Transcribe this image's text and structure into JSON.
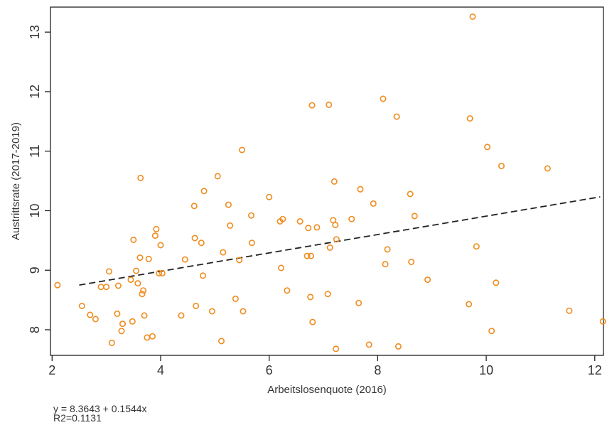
{
  "chart_data": {
    "type": "scatter",
    "title": "",
    "xlabel": "Arbeitslosenquote (2016)",
    "ylabel": "Austrittsrate (2017-2019)",
    "xlim": [
      1.97,
      12.16
    ],
    "ylim": [
      7.57,
      13.42
    ],
    "xticks": [
      2,
      4,
      6,
      8,
      10,
      12
    ],
    "yticks": [
      8,
      9,
      10,
      11,
      12,
      13
    ],
    "grid": false,
    "colors": {
      "points": "#f08c1e",
      "fit_line": "#222222",
      "axis": "#222222"
    },
    "series": [
      {
        "marker": "hollow-circle",
        "x": [
          2.1,
          2.55,
          2.7,
          2.8,
          2.9,
          3.0,
          3.05,
          3.1,
          3.2,
          3.22,
          3.28,
          3.3,
          3.45,
          3.48,
          3.5,
          3.55,
          3.58,
          3.62,
          3.63,
          3.66,
          3.68,
          3.7,
          3.75,
          3.78,
          3.85,
          3.9,
          3.92,
          3.97,
          4.0,
          4.03,
          4.38,
          4.45,
          4.62,
          4.63,
          4.65,
          4.75,
          4.78,
          4.8,
          4.95,
          5.05,
          5.12,
          5.15,
          5.25,
          5.28,
          5.38,
          5.45,
          5.5,
          5.52,
          5.67,
          5.68,
          6.0,
          6.2,
          6.22,
          6.25,
          6.33,
          6.57,
          6.7,
          6.72,
          6.76,
          6.77,
          6.79,
          6.8,
          6.88,
          7.08,
          7.1,
          7.12,
          7.18,
          7.2,
          7.22,
          7.24,
          7.23,
          7.52,
          7.65,
          7.68,
          7.84,
          7.92,
          8.1,
          8.14,
          8.18,
          8.35,
          8.38,
          8.6,
          8.62,
          8.68,
          8.92,
          9.68,
          9.7,
          9.75,
          9.82,
          10.02,
          10.1,
          10.18,
          10.28,
          11.13,
          11.53,
          12.15
        ],
        "y": [
          8.75,
          8.4,
          8.25,
          8.18,
          8.72,
          8.72,
          8.98,
          7.78,
          8.27,
          8.74,
          7.98,
          8.1,
          8.84,
          8.14,
          9.51,
          8.99,
          8.78,
          9.21,
          10.55,
          8.6,
          8.66,
          8.24,
          7.87,
          9.19,
          7.89,
          9.58,
          9.69,
          8.95,
          9.42,
          8.95,
          8.24,
          9.18,
          10.08,
          9.54,
          8.4,
          9.46,
          8.91,
          10.33,
          8.31,
          10.58,
          7.81,
          9.3,
          10.1,
          9.75,
          8.52,
          9.17,
          11.02,
          8.31,
          9.92,
          9.46,
          10.23,
          9.82,
          9.04,
          9.86,
          8.66,
          9.82,
          9.24,
          9.71,
          8.55,
          9.24,
          11.77,
          8.13,
          9.72,
          8.6,
          11.78,
          9.38,
          9.84,
          10.49,
          9.76,
          9.52,
          7.68,
          9.86,
          8.45,
          10.36,
          7.75,
          10.12,
          11.88,
          9.1,
          9.35,
          11.58,
          7.72,
          10.28,
          9.14,
          9.91,
          8.84,
          8.43,
          11.55,
          13.26,
          9.4,
          11.07,
          7.98,
          8.79,
          10.75,
          10.71,
          8.32,
          8.14
        ]
      }
    ],
    "fit": {
      "intercept": 8.3643,
      "slope": 0.1544,
      "x_from": 2.5,
      "x_to": 12.1,
      "style": "dashed"
    },
    "annotations": {
      "equation": "y = 8.3643 + 0.1544x",
      "r2": "R2=0.1131"
    }
  }
}
